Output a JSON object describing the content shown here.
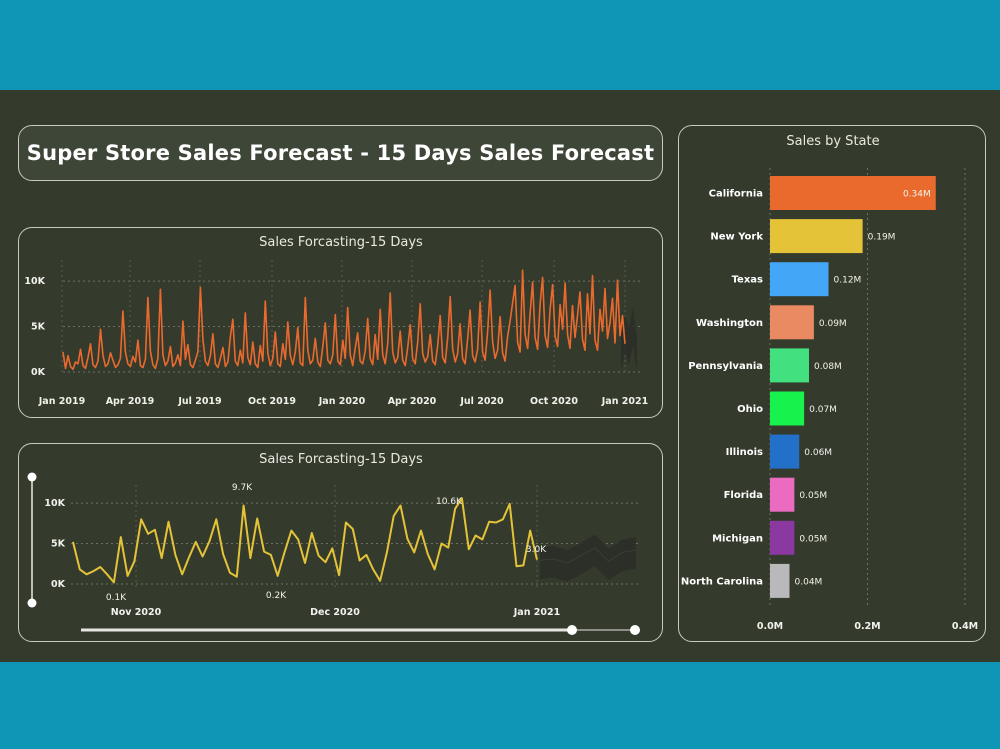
{
  "dashboard": {
    "title": "Super Store Sales Forecast - 15 Days Sales Forecast"
  },
  "colors": {
    "background_band": "#0f96b6",
    "dashboard_bg": "#343b2d",
    "line_orange": "#ea6a2e",
    "line_yellow": "#e4c338",
    "forecast_band": "#2c2f29"
  },
  "chart_data": [
    {
      "type": "line",
      "title": "Sales Forcasting-15 Days",
      "x_tick_labels": [
        "Jan 2019",
        "Apr 2019",
        "Jul 2019",
        "Oct 2019",
        "Jan 2020",
        "Apr 2020",
        "Jul 2020",
        "Oct 2020",
        "Jan 2021"
      ],
      "y_tick_labels": [
        "10K",
        "5K",
        "0K"
      ],
      "ylim": [
        0,
        11000
      ],
      "grid": true,
      "series": [
        {
          "color": "#ea6a2e",
          "values": [
            2200,
            400,
            1800,
            600,
            300,
            1100,
            900,
            2500,
            700,
            400,
            1600,
            3100,
            800,
            500,
            1200,
            4700,
            1800,
            600,
            900,
            2100,
            1300,
            500,
            800,
            1500,
            6700,
            2200,
            900,
            600,
            1700,
            1100,
            3500,
            700,
            500,
            1400,
            8200,
            2300,
            800,
            400,
            1500,
            9100,
            1900,
            700,
            1200,
            2800,
            600,
            1000,
            1900,
            700,
            5600,
            1400,
            3000,
            800,
            500,
            1300,
            2200,
            9300,
            3600,
            1200,
            700,
            1800,
            4200,
            900,
            500,
            1500,
            2700,
            600,
            1100,
            3900,
            5800,
            1200,
            700,
            2400,
            1000,
            6500,
            1600,
            800,
            3300,
            900,
            500,
            2900,
            1200,
            7800,
            2100,
            700,
            1500,
            4400,
            900,
            600,
            3100,
            1400,
            5500,
            1800,
            800,
            2200,
            4900,
            1000,
            700,
            8200,
            2400,
            900,
            1300,
            3700,
            1100,
            600,
            2800,
            5400,
            1300,
            900,
            1900,
            6300,
            1200,
            800,
            3500,
            1500,
            7100,
            1900,
            700,
            2600,
            4300,
            1200,
            900,
            2300,
            5900,
            1500,
            800,
            4100,
            1400,
            6900,
            1900,
            900,
            3100,
            8700,
            2200,
            1000,
            1600,
            4500,
            1300,
            700,
            2700,
            5200,
            1500,
            900,
            3300,
            7500,
            2000,
            1100,
            1700,
            4100,
            1200,
            800,
            2900,
            6200,
            1600,
            1000,
            3800,
            8300,
            2500,
            1100,
            2000,
            5300,
            1500,
            900,
            3600,
            6800,
            1800,
            1100,
            2500,
            7700,
            2200,
            1300,
            4400,
            9000,
            3300,
            1500,
            2400,
            6100,
            2100,
            1200,
            3900,
            5600,
            7600,
            9500,
            3300,
            2200,
            11200,
            4100,
            2600,
            6400,
            9900,
            3800,
            2500,
            7500,
            10400,
            4000,
            2700,
            6900,
            9600,
            3900,
            2800,
            7400,
            4700,
            9800,
            4100,
            2600,
            7300,
            3800,
            6200,
            8800,
            3600,
            2400,
            8600,
            4200,
            10600,
            3500,
            2400,
            6900,
            4500,
            9200,
            3700,
            5400,
            8100,
            3200,
            10100,
            4000,
            6200,
            3100
          ]
        },
        {
          "name": "forecast",
          "color": "#2a2e27",
          "values": [
            4500,
            6200,
            5000,
            7100,
            3800
          ]
        }
      ]
    },
    {
      "type": "line",
      "title": "Sales Forcasting-15 Days",
      "x_tick_labels": [
        "Nov 2020",
        "Dec 2020",
        "Jan 2021"
      ],
      "y_tick_labels": [
        "10K",
        "5K",
        "0K"
      ],
      "ylim": [
        0,
        11000
      ],
      "data_labels": [
        "9.7K",
        "10.6K",
        "0.1K",
        "0.2K",
        "3.0K"
      ],
      "grid": true,
      "series": [
        {
          "color": "#e4c338",
          "values": [
            5200,
            1800,
            1200,
            1600,
            2100,
            1200,
            200,
            5800,
            1000,
            2800,
            8000,
            6200,
            6700,
            3200,
            7700,
            3600,
            1200,
            3300,
            5200,
            3400,
            5300,
            8000,
            3700,
            1400,
            900,
            9700,
            3200,
            8100,
            4000,
            3600,
            1000,
            3900,
            6600,
            5500,
            2600,
            6300,
            3500,
            2700,
            4400,
            1100,
            7600,
            6800,
            2900,
            3600,
            1800,
            400,
            3900,
            8400,
            9700,
            5600,
            3900,
            6600,
            3700,
            1800,
            5000,
            4500,
            9300,
            10600,
            4300,
            6000,
            5500,
            7700,
            7600,
            8000,
            9900,
            2200,
            2300,
            6600,
            3000
          ]
        },
        {
          "name": "forecast",
          "color": "#2b2e28",
          "values": [
            2900,
            3100,
            2600,
            3500,
            4500,
            2800,
            3900,
            4200
          ]
        }
      ]
    },
    {
      "type": "bar",
      "orientation": "horizontal",
      "title": "Sales by State",
      "categories": [
        "California",
        "New York",
        "Texas",
        "Washington",
        "Pennsylvania",
        "Ohio",
        "Illinois",
        "Florida",
        "Michigan",
        "North Carolina"
      ],
      "values": [
        0.34,
        0.19,
        0.12,
        0.09,
        0.08,
        0.07,
        0.06,
        0.05,
        0.05,
        0.04
      ],
      "value_labels": [
        "0.34M",
        "0.19M",
        "0.12M",
        "0.09M",
        "0.08M",
        "0.07M",
        "0.06M",
        "0.05M",
        "0.05M",
        "0.04M"
      ],
      "bar_colors": [
        "#ea6a2e",
        "#e4c338",
        "#43a6f7",
        "#ea8a62",
        "#43e07f",
        "#17f24d",
        "#2370c9",
        "#ea6bc0",
        "#8b38a0",
        "#b9b9bb"
      ],
      "x_tick_labels": [
        "0.0M",
        "0.2M",
        "0.4M"
      ],
      "xlim": [
        0,
        0.4
      ],
      "grid": true
    }
  ]
}
